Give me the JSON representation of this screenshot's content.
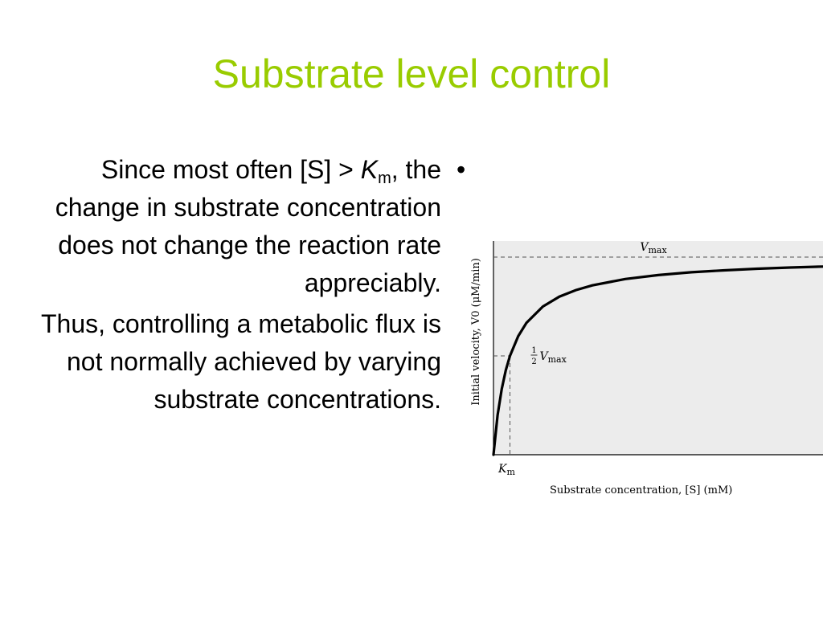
{
  "slide": {
    "title": "Substrate level control",
    "paragraph1": {
      "before": "Since most often [S] > ",
      "km_symbol": "K",
      "km_subscript": "m",
      "after": ", the change in substrate concentration does not change the reaction rate appreciably."
    },
    "paragraph2": "Thus, controlling a  metabolic flux is not normally achieved by varying substrate concentrations.",
    "bullet": "•"
  },
  "chart_data": {
    "type": "line",
    "xlabel": "Substrate concentration, [S] (mM)",
    "ylabel": "Initial velocity, V0 (μM/min)",
    "vmax": 1.0,
    "km": 1.0,
    "xlim": [
      0,
      20
    ],
    "ylim": [
      0,
      1.2
    ],
    "series": [
      {
        "x": [
          0,
          0.25,
          0.5,
          0.75,
          1,
          1.5,
          2,
          3,
          4,
          5,
          6,
          8,
          10,
          12,
          14,
          16,
          18,
          20
        ],
        "values": [
          0,
          0.2,
          0.333,
          0.429,
          0.5,
          0.6,
          0.667,
          0.75,
          0.8,
          0.833,
          0.857,
          0.889,
          0.909,
          0.923,
          0.933,
          0.941,
          0.947,
          0.952
        ]
      }
    ],
    "annotations": {
      "vmax_label": "V",
      "vmax_sub": "max",
      "half_numer": "1",
      "half_denom": "2",
      "half_v": "V",
      "half_sub": "max",
      "km_label": "K",
      "km_sub": "m"
    },
    "grid": false,
    "colors": {
      "plot_background": "#ececec",
      "curve": "#000000",
      "guide_lines": "#555555"
    }
  }
}
